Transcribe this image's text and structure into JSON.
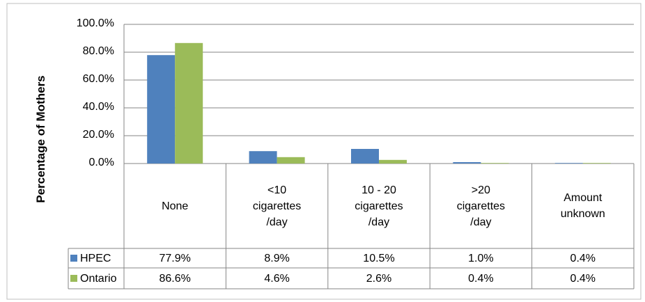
{
  "chart_data": {
    "type": "bar",
    "y_label": "Percentage of Mothers",
    "categories": [
      "None",
      "<10\ncigarettes\n/day",
      "10 - 20\ncigarettes\n/day",
      ">20\ncigarettes\n/day",
      "Amount\nunknown"
    ],
    "series": [
      {
        "name": "HPEC",
        "color": "#4f81bd",
        "values": [
          77.9,
          8.9,
          10.5,
          1.0,
          0.4
        ],
        "value_labels": [
          "77.9%",
          "8.9%",
          "10.5%",
          "1.0%",
          "0.4%"
        ]
      },
      {
        "name": "Ontario",
        "color": "#9bbb59",
        "values": [
          86.6,
          4.6,
          2.6,
          0.4,
          0.4
        ],
        "value_labels": [
          "86.6%",
          "4.6%",
          "2.6%",
          "0.4%",
          "0.4%"
        ]
      }
    ],
    "ylim": [
      0,
      100
    ],
    "yticks": [
      {
        "value": 0,
        "label": "0.0%"
      },
      {
        "value": 20,
        "label": "20.0%"
      },
      {
        "value": 40,
        "label": "40.0%"
      },
      {
        "value": 60,
        "label": "60.0%"
      },
      {
        "value": 80,
        "label": "80.0%"
      },
      {
        "value": 100,
        "label": "100.0%"
      }
    ],
    "grid": true,
    "data_table": true
  }
}
